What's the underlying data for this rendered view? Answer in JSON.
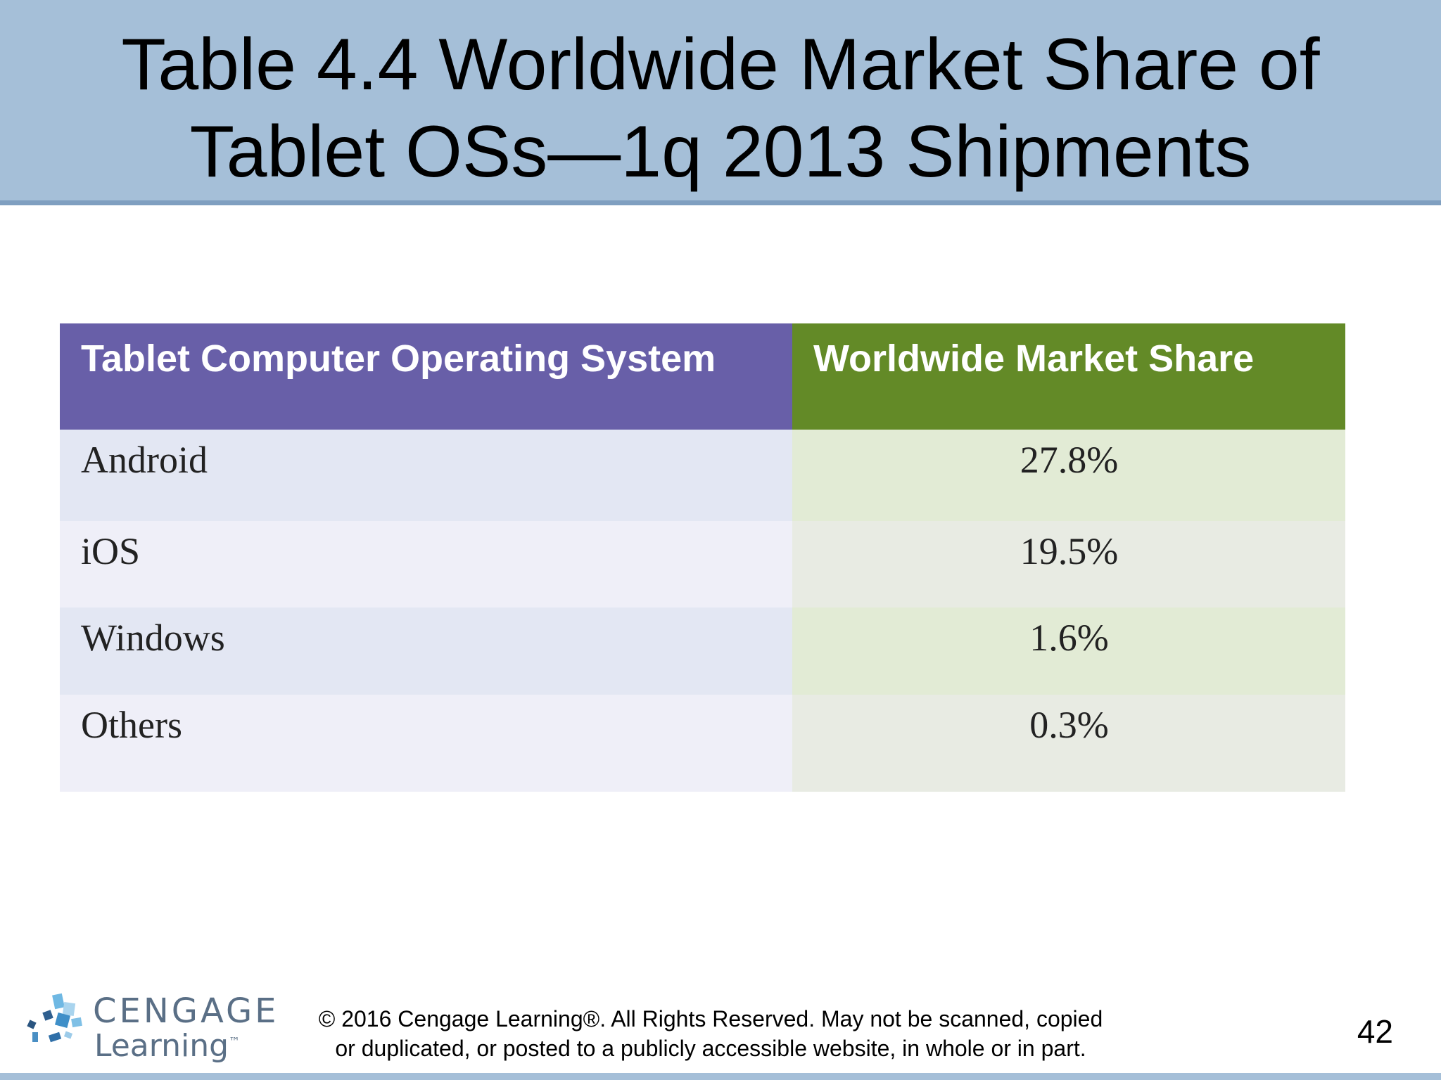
{
  "slide": {
    "title_line1": "Table 4.4 Worldwide Market Share of",
    "title_line2": "Tablet OSs—1q 2013 Shipments",
    "page_number": "42"
  },
  "table": {
    "headers": [
      "Tablet Computer Operating System",
      "Worldwide Market Share"
    ],
    "rows": [
      {
        "os": "Android",
        "share": "27.8%"
      },
      {
        "os": "iOS",
        "share": "19.5%"
      },
      {
        "os": "Windows",
        "share": "1.6%"
      },
      {
        "os": "Others",
        "share": "0.3%"
      }
    ]
  },
  "footer": {
    "logo_line1": "CENGAGE",
    "logo_line2": "Learning",
    "logo_tm": "™",
    "copyright_line1": "© 2016 Cengage Learning®. All Rights Reserved. May not be scanned, copied",
    "copyright_line2": "or duplicated, or posted to a publicly accessible website, in whole or in part."
  },
  "colors": {
    "title_band": "#a5bfd8",
    "header_col1": "#685fa8",
    "header_col2": "#638a27"
  }
}
